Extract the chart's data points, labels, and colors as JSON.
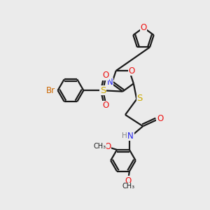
{
  "background_color": "#ebebeb",
  "bond_color": "#1a1a1a",
  "atom_colors": {
    "O": "#ee1111",
    "N": "#2222ee",
    "S": "#ccaa00",
    "Br": "#cc6600",
    "H": "#888888",
    "C": "#1a1a1a"
  },
  "line_width": 1.6,
  "font_size": 8.5
}
